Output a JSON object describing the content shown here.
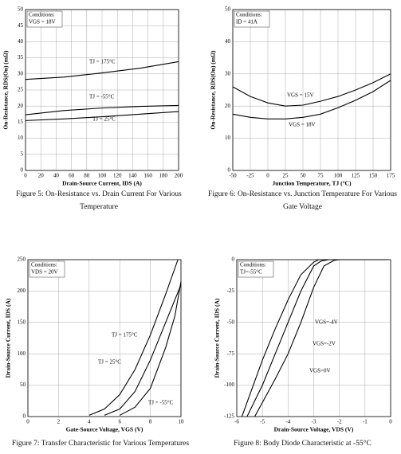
{
  "chart_data": [
    {
      "type": "line",
      "title": "Figure 5: On-Resistance vs. Drain Current For Various Temperature",
      "conditions": [
        "Conditions:",
        "VGS = 18V"
      ],
      "x_label": "Drain-Source Current, IDS (A)",
      "y_label": "On-Resistance, RDS(On) (mΩ)",
      "xlim": [
        0,
        200
      ],
      "xticks": [
        0,
        20,
        40,
        60,
        80,
        100,
        120,
        140,
        160,
        180,
        200
      ],
      "ylim": [
        0,
        50
      ],
      "yticks": [
        0,
        5,
        10,
        15,
        20,
        25,
        30,
        35,
        40,
        45,
        50
      ],
      "grid": true,
      "series": [
        {
          "name": "TJ = 175°C",
          "color": "#000000",
          "x": [
            0,
            50,
            100,
            150,
            200
          ],
          "values": [
            28.3,
            29,
            30.3,
            31.8,
            33.8
          ]
        },
        {
          "name": "TJ = -55°C",
          "color": "#000000",
          "x": [
            0,
            50,
            100,
            150,
            200
          ],
          "values": [
            17.3,
            18.6,
            19.4,
            19.9,
            20.2
          ]
        },
        {
          "name": "TJ = 25°C",
          "color": "#000000",
          "x": [
            0,
            50,
            100,
            150,
            200
          ],
          "values": [
            15.5,
            16,
            16.7,
            17.5,
            18.3
          ]
        }
      ]
    },
    {
      "type": "line",
      "title": "Figure 6: On-Resistance vs. Junction Temperature For Various Gate Voltage",
      "conditions": [
        "Conditions:",
        "ID = 41A"
      ],
      "x_label": "Junction Temperature, TJ (°C)",
      "y_label": "On-Resistance, RDS(On) (mΩ)",
      "xlim": [
        -50,
        175
      ],
      "xticks": [
        -50,
        -25,
        0,
        25,
        50,
        75,
        100,
        125,
        150,
        175
      ],
      "ylim": [
        0,
        50
      ],
      "yticks": [
        0,
        10,
        20,
        30,
        40,
        50
      ],
      "grid": true,
      "series": [
        {
          "name": "VGS = 15V",
          "color": "#000000",
          "x": [
            -50,
            -25,
            0,
            25,
            50,
            75,
            100,
            125,
            150,
            175
          ],
          "values": [
            26,
            23,
            21,
            20,
            20.3,
            21.5,
            23,
            25,
            27.3,
            30
          ]
        },
        {
          "name": "VGS = 18V",
          "color": "#000000",
          "x": [
            -50,
            -25,
            0,
            25,
            50,
            75,
            100,
            125,
            150,
            175
          ],
          "values": [
            17.5,
            16.5,
            16,
            16,
            16.5,
            17.5,
            19.5,
            21.8,
            24.5,
            28
          ]
        }
      ]
    },
    {
      "type": "line",
      "title": "Figure 7: Transfer Characteristic for Various Temperatures",
      "conditions": [
        "Conditions:",
        "VDS = 20V"
      ],
      "x_label": "Gate-Source Voltage, VGS (V)",
      "y_label": "Drain-Source Current, IDS (A)",
      "xlim": [
        0,
        10
      ],
      "xticks": [
        0,
        2,
        4,
        6,
        8,
        10
      ],
      "ylim": [
        0,
        250
      ],
      "yticks": [
        0,
        50,
        100,
        150,
        200,
        250
      ],
      "grid": true,
      "series": [
        {
          "name": "TJ = 175°C",
          "color": "#000000",
          "x": [
            4,
            5,
            6,
            7,
            8,
            9,
            9.8
          ],
          "values": [
            2,
            12,
            35,
            75,
            130,
            195,
            250
          ]
        },
        {
          "name": "TJ = 25°C",
          "color": "#000000",
          "x": [
            5,
            6,
            7,
            8,
            9,
            10
          ],
          "values": [
            2,
            12,
            40,
            90,
            150,
            210
          ]
        },
        {
          "name": "TJ = -55°C",
          "color": "#000000",
          "x": [
            6,
            7,
            8,
            9,
            9.6,
            10
          ],
          "values": [
            2,
            15,
            45,
            110,
            160,
            215
          ]
        }
      ]
    },
    {
      "type": "line",
      "title": "Figure 8: Body Diode Characteristic at -55°C",
      "conditions": [
        "Conditions:",
        "TJ=-55°C"
      ],
      "x_label": "Drain-Source Voltage, VDS (V)",
      "y_label": "Drain-Source Current, IDS (A)",
      "xlim": [
        -6,
        0
      ],
      "xticks": [
        -6,
        -5,
        -4,
        -3,
        -2,
        -1,
        0
      ],
      "ylim": [
        -125,
        0
      ],
      "yticks": [
        0,
        -25,
        -50,
        -75,
        -100,
        -125
      ],
      "grid": true,
      "series": [
        {
          "name": "VGS=-4V",
          "color": "#000000",
          "x": [
            -5.8,
            -5,
            -4.5,
            -4,
            -3.5,
            -3,
            -2.8,
            -0.1
          ],
          "values": [
            -125,
            -80,
            -55,
            -32,
            -12,
            -2,
            0,
            0
          ]
        },
        {
          "name": "VGS=-2V",
          "color": "#000000",
          "x": [
            -5.6,
            -5,
            -4.5,
            -4,
            -3.5,
            -3,
            -2.7,
            -2.4,
            -0.1
          ],
          "values": [
            -125,
            -100,
            -75,
            -50,
            -25,
            -5,
            -1,
            0,
            0
          ]
        },
        {
          "name": "VGS=0V",
          "color": "#000000",
          "x": [
            -5.3,
            -4.5,
            -4,
            -3.5,
            -3,
            -2.6,
            -2.2,
            -2,
            -0.1
          ],
          "values": [
            -125,
            -95,
            -75,
            -50,
            -22,
            -5,
            -0.5,
            0,
            0
          ]
        }
      ]
    }
  ]
}
